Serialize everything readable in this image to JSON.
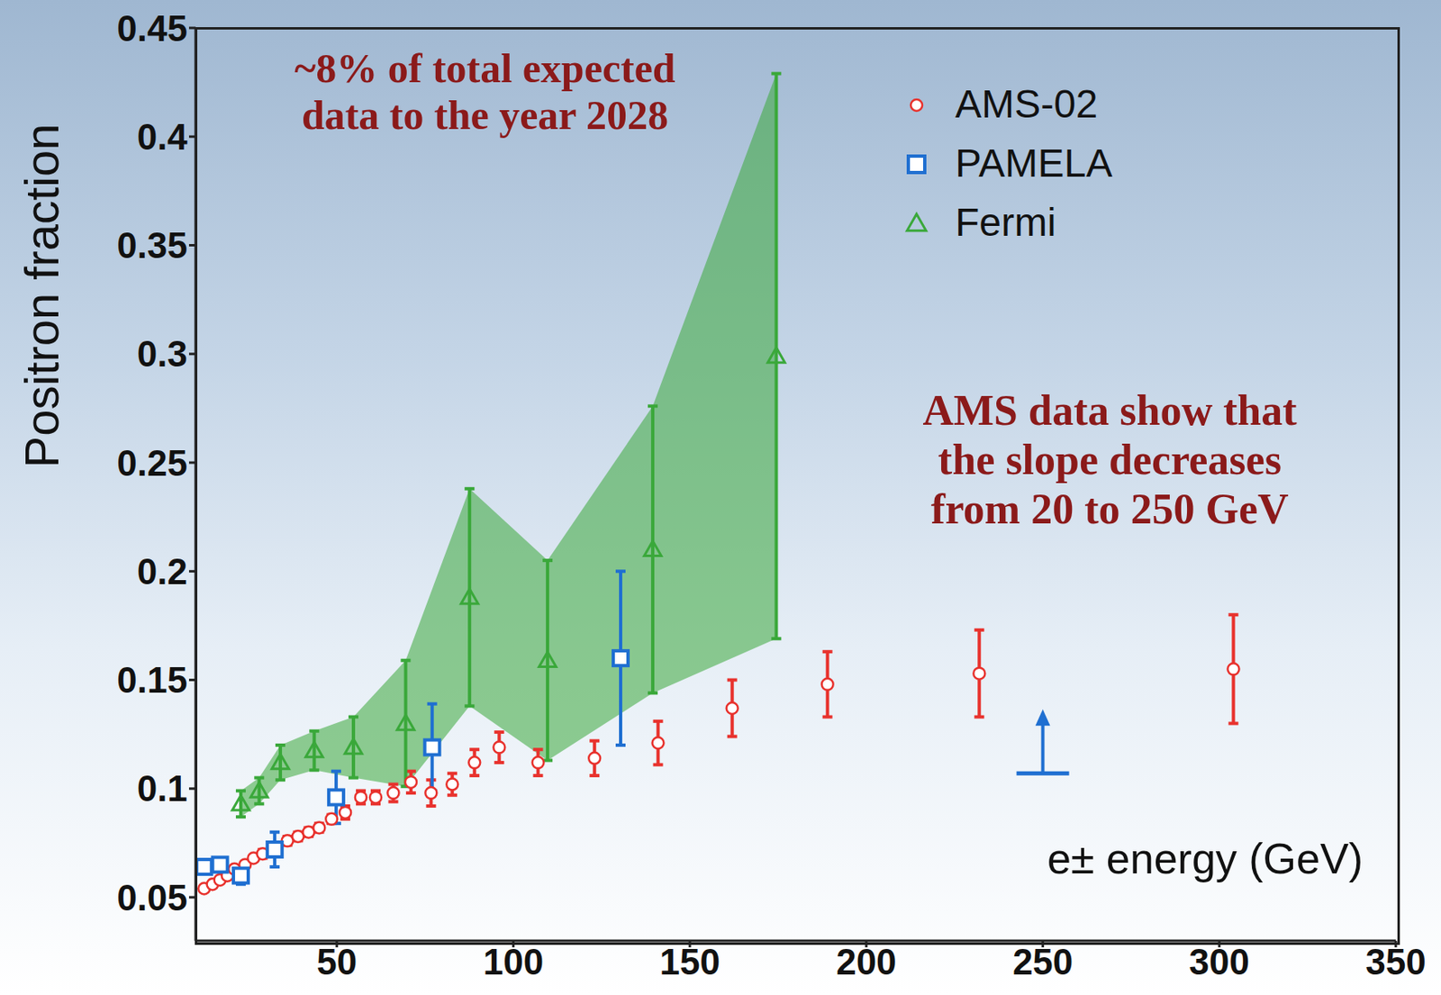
{
  "chart_data": {
    "type": "scatter",
    "x_label": "e± energy (GeV)",
    "y_label": "Positron fraction",
    "annotations": [
      "~8% of total expected\ndata to the year 2028",
      "AMS data show that\nthe slope decreases\nfrom 20 to 250 GeV"
    ],
    "xlim": [
      10,
      350
    ],
    "xticks": [
      50,
      100,
      150,
      200,
      250,
      300,
      350
    ],
    "ylim": [
      0.03,
      0.45
    ],
    "yticks": [
      0.05,
      0.1,
      0.15,
      0.2,
      0.25,
      0.3,
      0.35,
      0.4,
      0.45
    ],
    "legend": "top-right",
    "series": [
      {
        "name": "AMS-02",
        "type": "scatter",
        "color": "#e8322d",
        "marker": "circle",
        "x": [
          12.4,
          14.8,
          16.9,
          19,
          21,
          24,
          26.4,
          29,
          33,
          36,
          39,
          42,
          45,
          48.5,
          52.4,
          56.8,
          61,
          66,
          71,
          76.7,
          82.7,
          89,
          96,
          107,
          123,
          141,
          162,
          189,
          232,
          304
        ],
        "values": [
          0.054,
          0.056,
          0.058,
          0.06,
          0.063,
          0.065,
          0.068,
          0.07,
          0.072,
          0.076,
          0.078,
          0.08,
          0.082,
          0.086,
          0.089,
          0.096,
          0.096,
          0.098,
          0.103,
          0.098,
          0.102,
          0.112,
          0.119,
          0.112,
          0.114,
          0.121,
          0.137,
          0.148,
          0.153,
          0.155
        ],
        "errors": [
          0.001,
          0.001,
          0.001,
          0.001,
          0.001,
          0.001,
          0.001,
          0.002,
          0.002,
          0.002,
          0.002,
          0.002,
          0.002,
          0.002,
          0.003,
          0.003,
          0.003,
          0.004,
          0.005,
          0.006,
          0.005,
          0.006,
          0.007,
          0.006,
          0.008,
          0.01,
          0.013,
          0.015,
          0.02,
          0.025
        ]
      },
      {
        "name": "PAMELA",
        "type": "scatter",
        "color": "#1f6fd1",
        "marker": "square",
        "x": [
          12.4,
          16.9,
          22.8,
          32.4,
          49.8,
          77,
          130.4
        ],
        "values": [
          0.064,
          0.065,
          0.06,
          0.072,
          0.096,
          0.119,
          0.16
        ],
        "errors": [
          0.003,
          0.003,
          0.004,
          0.008,
          0.012,
          0.02,
          0.04
        ],
        "lower_limits": {
          "x": [
            250
          ],
          "values": [
            0.107
          ]
        }
      },
      {
        "name": "Fermi",
        "type": "scatter_band",
        "color": "#3aa83a",
        "marker": "triangle",
        "x": [
          22.8,
          28,
          34,
          43.6,
          54.7,
          69.5,
          87.6,
          109.7,
          139.5,
          174.5
        ],
        "values": [
          0.093,
          0.099,
          0.112,
          0.1175,
          0.119,
          0.13,
          0.188,
          0.159,
          0.21,
          0.299
        ],
        "errors": [
          0.006,
          0.006,
          0.008,
          0.009,
          0.014,
          0.029,
          0.05,
          0.046,
          0.066,
          0.13
        ]
      }
    ]
  }
}
